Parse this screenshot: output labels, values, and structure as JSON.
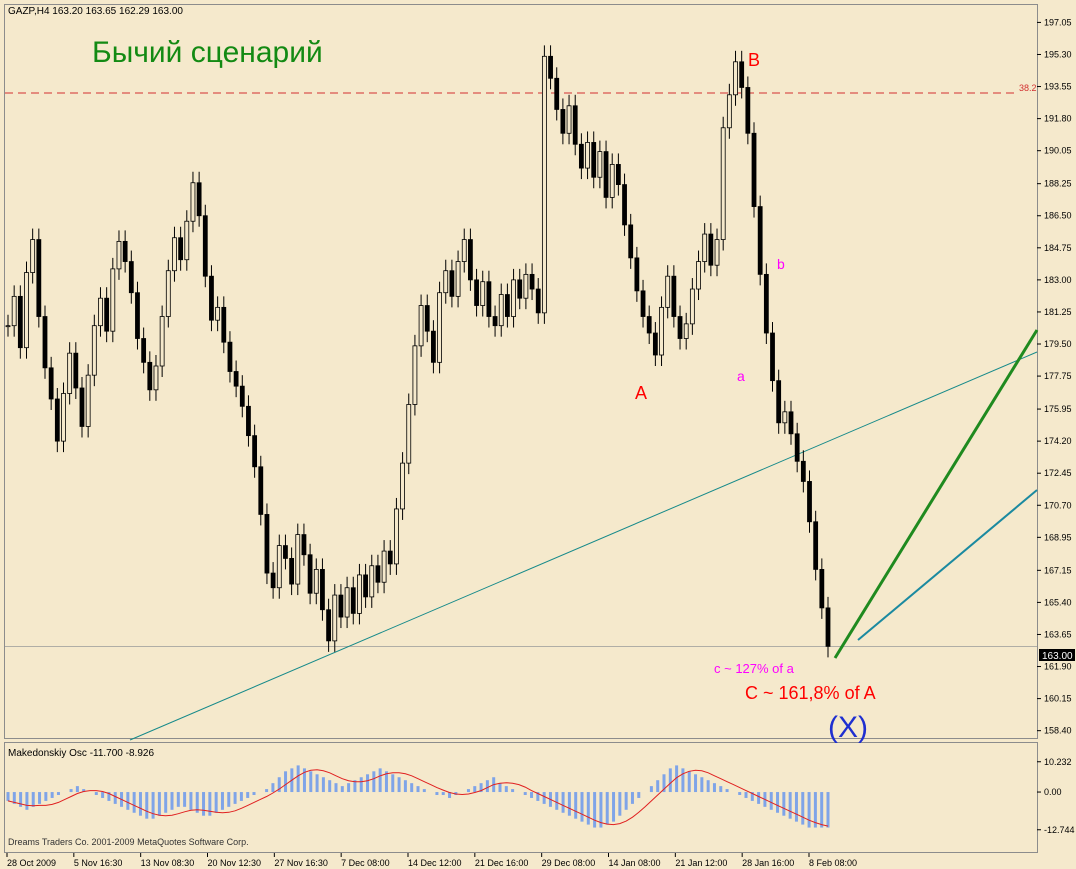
{
  "header": {
    "symbol_info": "GAZP,H4  163.20 163.65 162.29 163.00",
    "scenario_title": "Бычий сценарий"
  },
  "colors": {
    "background": "#f5e9cc",
    "candle": "#000000",
    "title_green": "#138a13",
    "wave_red": "#ff0000",
    "wave_magenta": "#ff00ff",
    "x_label_blue": "#1f2fd0",
    "fib_line": "#d23030",
    "trend_teal": "#168a8a",
    "forecast_green": "#1f8a1f",
    "forecast_teal": "#1b8aa0",
    "osc_bars": "#7fa4e8",
    "osc_signal": "#e02020"
  },
  "chart_data": {
    "type": "candlestick",
    "title": "",
    "ylim": [
      158.0,
      198.0
    ],
    "y_ticks": [
      "197.05",
      "195.30",
      "193.55",
      "191.80",
      "190.05",
      "188.25",
      "186.50",
      "184.75",
      "183.00",
      "181.25",
      "179.50",
      "177.75",
      "175.95",
      "174.20",
      "172.45",
      "170.70",
      "168.95",
      "167.15",
      "165.40",
      "163.65",
      "161.90",
      "160.15",
      "158.40"
    ],
    "x_ticks": [
      "28 Oct 2009",
      "5 Nov 16:30",
      "13 Nov 08:30",
      "20 Nov 12:30",
      "27 Nov 16:30",
      "7 Dec 08:00",
      "14 Dec 12:00",
      "21 Dec 16:00",
      "29 Dec 08:00",
      "14 Jan 08:00",
      "21 Jan 12:00",
      "28 Jan 16:00",
      "8 Feb 08:00"
    ],
    "current_price": "163.00",
    "fib_level": {
      "label": "38.2",
      "value": 193.2
    },
    "closes": [
      180.5,
      182.1,
      179.3,
      183.4,
      185.2,
      181.0,
      178.2,
      176.5,
      174.2,
      176.8,
      179.0,
      177.1,
      175.0,
      177.8,
      180.5,
      182.0,
      180.2,
      183.6,
      185.1,
      184.0,
      182.3,
      179.8,
      178.5,
      177.0,
      178.3,
      181.0,
      183.5,
      185.3,
      184.1,
      186.2,
      188.3,
      186.5,
      183.2,
      180.8,
      181.5,
      179.6,
      178.0,
      177.2,
      176.1,
      174.5,
      172.8,
      170.2,
      167.0,
      166.2,
      168.5,
      167.8,
      166.4,
      169.1,
      168.0,
      165.9,
      167.2,
      165.0,
      163.3,
      165.8,
      164.6,
      166.2,
      164.8,
      166.9,
      165.7,
      167.4,
      166.5,
      168.2,
      167.5,
      170.5,
      173.0,
      176.2,
      179.4,
      181.6,
      180.2,
      178.5,
      182.3,
      183.5,
      182.1,
      184.0,
      185.2,
      183.0,
      181.6,
      182.9,
      181.0,
      180.5,
      182.2,
      181.0,
      183.0,
      182.0,
      183.3,
      182.5,
      181.2,
      195.2,
      194.0,
      192.3,
      191.0,
      192.5,
      190.4,
      189.1,
      190.5,
      188.6,
      190.0,
      187.5,
      189.3,
      188.2,
      186.0,
      184.2,
      182.4,
      181.0,
      180.1,
      178.9,
      181.5,
      183.2,
      181.0,
      179.8,
      180.6,
      182.5,
      184.0,
      185.5,
      183.8,
      185.2,
      191.3,
      193.1,
      194.9,
      193.5,
      191.0,
      187.0,
      183.3,
      180.1,
      177.5,
      175.2,
      175.8,
      174.6,
      173.1,
      172.0,
      169.8,
      167.2,
      165.1,
      163.0
    ],
    "annotations": {
      "wave_A": "A",
      "wave_B": "B",
      "wave_a": "a",
      "wave_b": "b",
      "wave_c_text": "c ~ 127% of a",
      "wave_C_text": "C ~ 161,8% of A",
      "wave_X": "(X)"
    },
    "oscillator": {
      "name": "Makedonskiy Osc -11.700 -8.926",
      "y_ticks": [
        "10.232",
        "0.00",
        "-12.744"
      ],
      "ylim": [
        -13.5,
        11.5
      ],
      "values": [
        -3,
        -4,
        -5,
        -6,
        -5,
        -4,
        -3,
        -2,
        -1,
        0,
        1,
        2,
        1,
        0,
        -1,
        -2,
        -3,
        -4,
        -5,
        -6,
        -7,
        -8,
        -9,
        -9,
        -8,
        -7,
        -6,
        -5,
        -5,
        -6,
        -7,
        -8,
        -8,
        -7,
        -6,
        -5,
        -4,
        -3,
        -2,
        -1,
        0,
        1,
        3,
        5,
        7,
        8,
        9,
        8,
        7,
        6,
        5,
        4,
        3,
        2,
        3,
        4,
        5,
        6,
        7,
        8,
        7,
        6,
        5,
        4,
        3,
        2,
        1,
        0,
        -1,
        -1,
        -2,
        -1,
        0,
        1,
        2,
        3,
        4,
        5,
        3,
        2,
        1,
        0,
        -1,
        -2,
        -3,
        -4,
        -5,
        -6,
        -7,
        -8,
        -9,
        -10,
        -11,
        -12,
        -12,
        -11,
        -10,
        -8,
        -6,
        -4,
        -2,
        0,
        2,
        4,
        6,
        8,
        9,
        8,
        7,
        6,
        5,
        4,
        3,
        2,
        1,
        0,
        -1,
        -2,
        -3,
        -4,
        -5,
        -6,
        -7,
        -8,
        -9,
        -10,
        -11,
        -12,
        -12,
        -12,
        -12
      ],
      "footer_text": "Dreams Traders Co. 2001-2009 MetaQuotes Software Corp."
    }
  }
}
